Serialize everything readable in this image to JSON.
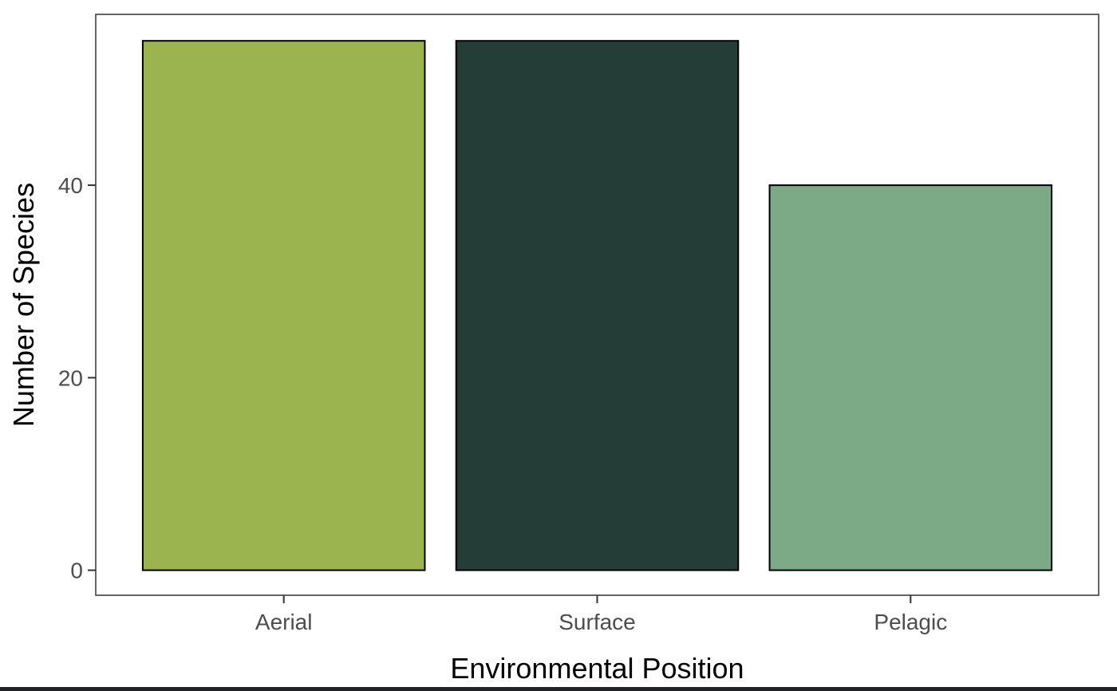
{
  "chart_data": {
    "type": "bar",
    "categories": [
      "Aerial",
      "Surface",
      "Pelagic"
    ],
    "values": [
      55,
      55,
      40
    ],
    "colors": [
      "#9bb44f",
      "#243d37",
      "#7ca986"
    ],
    "xlabel": "Environmental Position",
    "ylabel": "Number of Species",
    "ylim": [
      -2.6,
      57.75
    ],
    "yticks": [
      0,
      20,
      40
    ],
    "grid": false,
    "legend": "none"
  }
}
